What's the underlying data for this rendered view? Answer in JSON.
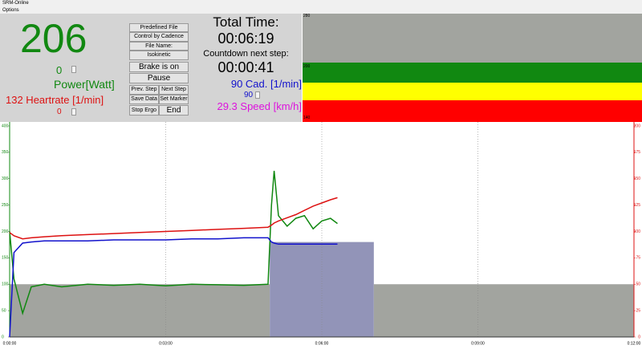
{
  "window": {
    "title": "SRM-Online",
    "menu": [
      "Options"
    ]
  },
  "display": {
    "power": "206",
    "power_offset": "0",
    "power_label": "Power[Watt]",
    "heartrate": "132 Heartrate [1/min]",
    "heartrate_offset": "0"
  },
  "controls": {
    "mode_label": "Predefined File",
    "control": "Control by Cadence",
    "file_label": "File Name:",
    "file_name": "Isokinetic",
    "brake": "Brake is on",
    "buttons": [
      "Pause",
      "Prev. Step",
      "Next Step",
      "Save Data",
      "Set Marker",
      "Stop Ergo",
      "End"
    ]
  },
  "timer": {
    "total_label": "Total Time:",
    "total": "00:06:19",
    "countdown_label": "Countdown next step:",
    "countdown": "00:00:41",
    "cadence": "90 Cad. [1/min]",
    "cadence_target": "90",
    "speed": "29.3 Speed [km/h]"
  },
  "gauge": {
    "labels": [
      "280",
      "200",
      "140"
    ]
  },
  "chart_data": {
    "type": "line",
    "x": [
      0,
      5,
      15,
      25,
      40,
      60,
      90,
      120,
      150,
      180,
      210,
      240,
      270,
      298,
      302,
      305,
      310,
      320,
      330,
      340,
      350,
      360,
      370,
      378
    ],
    "series": [
      {
        "color": "#118811",
        "values": [
          200,
          110,
          45,
          95,
          100,
          95,
          100,
          98,
          100,
          97,
          100,
          99,
          98,
          100,
          250,
          315,
          230,
          210,
          225,
          230,
          205,
          220,
          225,
          215
        ]
      },
      {
        "color": "#dd1111",
        "axis": "y2",
        "values": [
          99,
          96,
          93,
          94,
          95,
          96,
          97,
          98,
          99,
          100,
          101,
          102,
          103,
          104,
          106,
          108,
          110,
          113,
          116,
          120,
          124,
          127,
          130,
          132
        ]
      },
      {
        "color": "#1111cc",
        "axis": "y2",
        "values": [
          0,
          80,
          89,
          90,
          91,
          91,
          91,
          92,
          92,
          92,
          93,
          93,
          94,
          94,
          90,
          89,
          88,
          88,
          88,
          88,
          88,
          88,
          88,
          88
        ]
      }
    ],
    "target": {
      "starts": [
        0,
        300,
        420
      ],
      "ends": [
        300,
        420,
        720
      ],
      "values": [
        100,
        180,
        100
      ],
      "colors": [
        "#a2a49f",
        "#9294b8",
        "#a2a49f"
      ]
    },
    "xlim": [
      0,
      720
    ],
    "xticks": [
      {
        "value": 0,
        "label": "0:00:00"
      },
      {
        "value": 180,
        "label": "0:03:00"
      },
      {
        "value": 360,
        "label": "0:06:00"
      },
      {
        "value": 540,
        "label": "0:09:00"
      },
      {
        "value": 720,
        "label": "0:12:00"
      }
    ],
    "ylim": [
      0,
      400
    ],
    "yticks": [
      0,
      50,
      100,
      150,
      200,
      250,
      300,
      350,
      400
    ],
    "y2lim": [
      0,
      200
    ],
    "y2ticks": [
      0,
      25,
      50,
      75,
      100,
      125,
      150,
      175,
      200
    ],
    "grid": "x"
  }
}
